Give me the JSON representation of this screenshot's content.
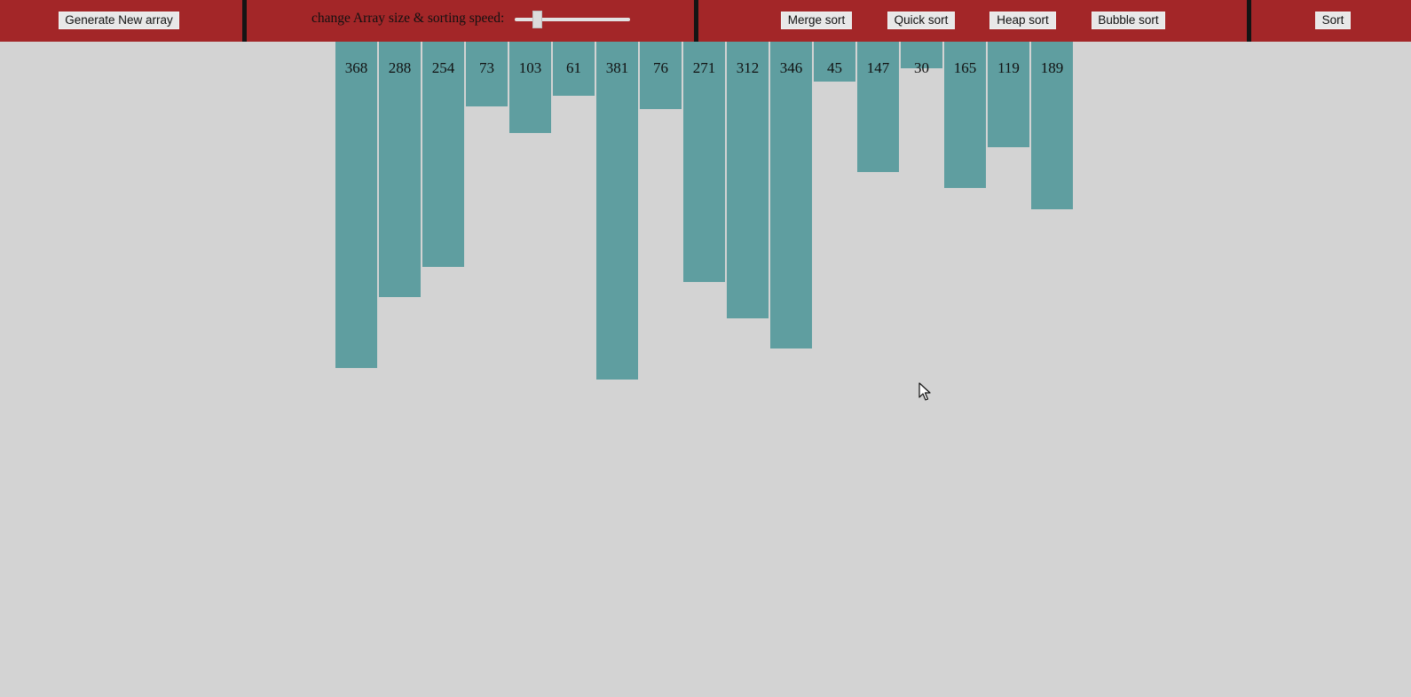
{
  "navbar": {
    "generate_label": "Generate New array",
    "slider_label": "change Array size & sorting speed:",
    "algorithms": [
      "Merge sort",
      "Quick sort",
      "Heap sort",
      "Bubble sort"
    ],
    "sort_label": "Sort",
    "slider_value_fraction": 0.17
  },
  "colors": {
    "navbar": "#a32628",
    "divider": "#141414",
    "bar": "#5f9ea0",
    "background": "#d3d3d3"
  },
  "array": {
    "values": [
      368,
      288,
      254,
      73,
      103,
      61,
      381,
      76,
      271,
      312,
      346,
      45,
      147,
      30,
      165,
      119,
      189
    ]
  },
  "icons": {
    "cursor": "mouse-pointer-icon"
  }
}
